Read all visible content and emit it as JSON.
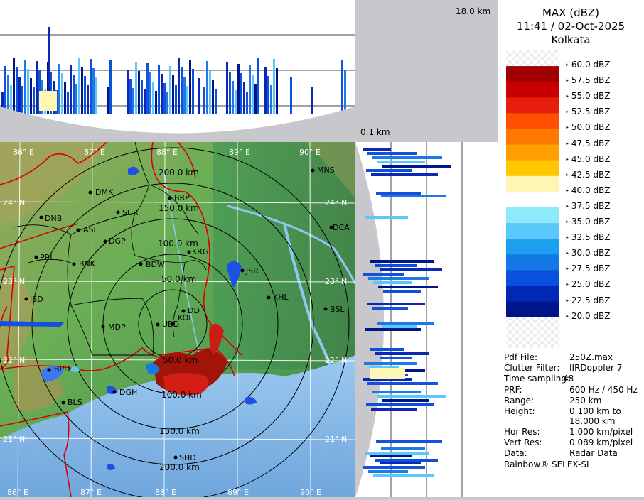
{
  "header": {
    "product": "MAX (dBZ)",
    "datetime": "11:41 / 02-Oct-2025",
    "station": "Kolkata"
  },
  "cross_section": {
    "top_max_label": "18.0 km",
    "right_min_label": "0.1 km"
  },
  "legend": {
    "items": [
      {
        "label": "60.0 dBZ",
        "color": "checker"
      },
      {
        "label": "57.5 dBZ",
        "color": "#a00000"
      },
      {
        "label": "55.0 dBZ",
        "color": "#c80000"
      },
      {
        "label": "52.5 dBZ",
        "color": "#e61e0a"
      },
      {
        "label": "50.0 dBZ",
        "color": "#ff5000"
      },
      {
        "label": "47.5 dBZ",
        "color": "#ff7800"
      },
      {
        "label": "45.0 dBZ",
        "color": "#ffa000"
      },
      {
        "label": "42.5 dBZ",
        "color": "#ffc800"
      },
      {
        "label": "40.0 dBZ",
        "color": "#fff5b4"
      },
      {
        "label": "37.5 dBZ",
        "color": "#ffffff"
      },
      {
        "label": "35.0 dBZ",
        "color": "#8ceafa"
      },
      {
        "label": "32.5 dBZ",
        "color": "#5ac8fa"
      },
      {
        "label": "30.0 dBZ",
        "color": "#1ea0f0"
      },
      {
        "label": "27.5 dBZ",
        "color": "#1478e6"
      },
      {
        "label": "25.0 dBZ",
        "color": "#0a50dc"
      },
      {
        "label": "22.5 dBZ",
        "color": "#0028b4"
      },
      {
        "label": "20.0 dBZ",
        "color": "#00148c"
      }
    ]
  },
  "metadata": {
    "pdf_file": {
      "key": "Pdf File:",
      "value": "250Z.max"
    },
    "clutter_filter": {
      "key": "Clutter Filter:",
      "value": "IIRDoppler 7"
    },
    "time_sampling": {
      "key": "Time sampling:",
      "value": "48"
    },
    "prf": {
      "key": "PRF:",
      "value": "600 Hz / 450 Hz"
    },
    "range": {
      "key": "Range:",
      "value": "250 km"
    },
    "height": {
      "key": "Height:",
      "value": "0.100 km to",
      "value2": "18.000 km"
    },
    "hor_res": {
      "key": "Hor Res:",
      "value": "1.000 km/pixel"
    },
    "vert_res": {
      "key": "Vert Res:",
      "value": "0.089 km/pixel"
    },
    "data": {
      "key": "Data:",
      "value": "Radar Data"
    },
    "credit": "Rainbow® SELEX-SI"
  },
  "map": {
    "lon_labels_top": [
      "86° E",
      "87° E",
      "88° E",
      "89° E",
      "90° E"
    ],
    "lon_labels_bottom": [
      "86° E",
      "87° E",
      "88° E",
      "89° E",
      "90° E"
    ],
    "lat_labels_left": [
      "24° N",
      "23° N",
      "22° N",
      "21° N"
    ],
    "lat_labels_right": [
      "24° N",
      "23° N",
      "22° N",
      "21° N"
    ],
    "ring_labels_north": [
      "50.0 km",
      "100.0 km",
      "150.0 km",
      "200.0 km"
    ],
    "ring_labels_south": [
      "50.0 km",
      "100.0 km",
      "150.0 km",
      "200.0 km"
    ],
    "cities": [
      "MNS",
      "DMK",
      "BRP",
      "DNB",
      "SUR",
      "ASL",
      "DGP",
      "DCA",
      "KRG",
      "PRL",
      "BNK",
      "BDW",
      "JSR",
      "KHL",
      "JSD",
      "DD",
      "KOL",
      "BSL",
      "MDP",
      "UBD",
      "BPD",
      "DGH",
      "BLS",
      "SHD"
    ]
  },
  "colors": {
    "ring": "#000000",
    "state_border": "#dc0000",
    "district_border": "#000000",
    "grid": "#ffffff",
    "sea": "#7fb4e6",
    "land_low": "#5faa4f",
    "land_high": "#8cae52"
  }
}
